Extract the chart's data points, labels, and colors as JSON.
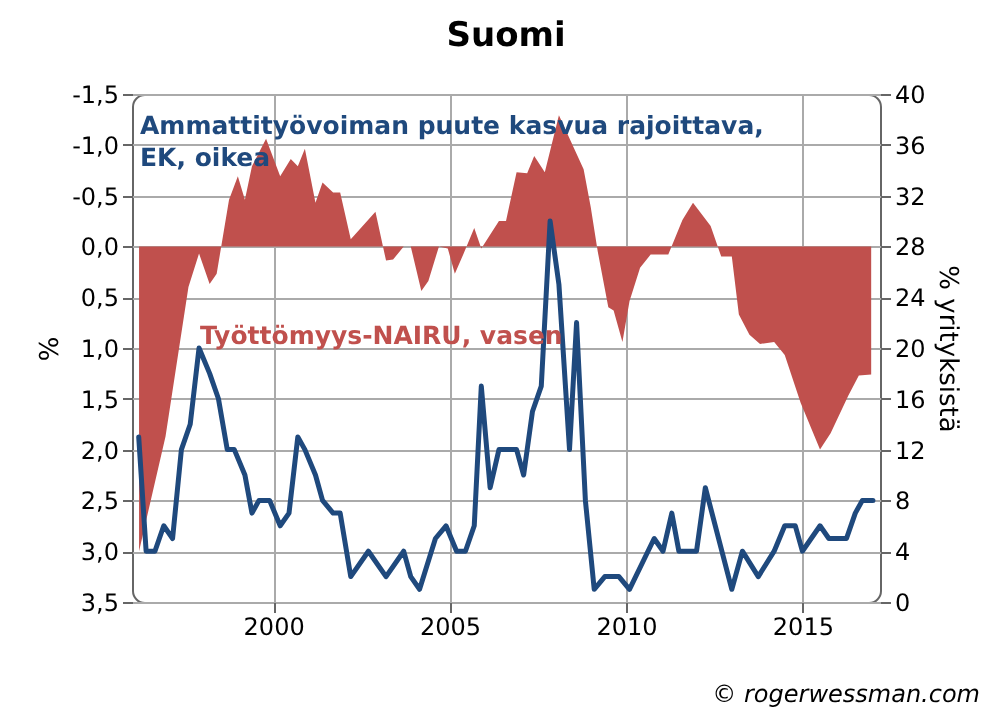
{
  "chart_data": {
    "type": "area",
    "title": "Suomi",
    "ylabel": "%",
    "y2label": "% yrityksistä",
    "annotations": [
      "© rogerwessman.com"
    ],
    "xlim": [
      1996,
      2017.2
    ],
    "xticks": [
      2000,
      2005,
      2010,
      2015
    ],
    "ylim": [
      3.5,
      -1.5
    ],
    "yticks": [
      {
        "value": -1.5,
        "label": "-1,5"
      },
      {
        "value": -1,
        "label": "-1,0"
      },
      {
        "value": -0.5,
        "label": "-0,5"
      },
      {
        "value": 0,
        "label": "0,0"
      },
      {
        "value": 0.5,
        "label": "0,5"
      },
      {
        "value": 1,
        "label": "1,0"
      },
      {
        "value": 1.5,
        "label": "1,5"
      },
      {
        "value": 2,
        "label": "2,0"
      },
      {
        "value": 2.5,
        "label": "2,5"
      },
      {
        "value": 3,
        "label": "3,0"
      },
      {
        "value": 3.5,
        "label": "3,5"
      }
    ],
    "y2lim": [
      0,
      40
    ],
    "y2ticks": [
      0,
      4,
      8,
      12,
      16,
      20,
      24,
      28,
      32,
      36,
      40
    ],
    "grid": true,
    "series": [
      {
        "name": "Työttömyys-NAIRU, vasen",
        "color": "#c0504d",
        "x": [
          1996.2,
          1996.95,
          1997.6,
          1997.9,
          1998.2,
          1998.4,
          1998.75,
          1999.0,
          1999.2,
          1999.4,
          1999.8,
          2000.2,
          2000.5,
          2000.7,
          2000.9,
          2001.2,
          2001.4,
          2001.7,
          2001.9,
          2002.2,
          2002.9,
          2003.2,
          2003.4,
          2003.7,
          2003.9,
          2004.2,
          2004.4,
          2004.7,
          2004.95,
          2005.15,
          2005.4,
          2005.7,
          2005.9,
          2006.4,
          2006.6,
          2006.9,
          2007.2,
          2007.4,
          2007.7,
          2008.1,
          2008.8,
          2009.0,
          2009.2,
          2009.5,
          2009.65,
          2009.9,
          2010.1,
          2010.4,
          2010.7,
          2011.2,
          2011.6,
          2011.9,
          2012.4,
          2012.7,
          2013.0,
          2013.2,
          2013.5,
          2013.8,
          2014.2,
          2014.5,
          2014.95,
          2015.5,
          2015.8,
          2016.3,
          2016.6,
          2016.95
        ],
        "values": [
          3.0,
          1.87,
          0.4,
          0.07,
          0.37,
          0.27,
          -0.46,
          -0.69,
          -0.46,
          -0.79,
          -1.06,
          -0.69,
          -0.86,
          -0.79,
          -0.96,
          -0.43,
          -0.63,
          -0.53,
          -0.53,
          -0.07,
          -0.34,
          0.14,
          0.13,
          0.0,
          0.0,
          0.44,
          0.34,
          0.0,
          0.02,
          0.27,
          0.07,
          -0.18,
          0.02,
          -0.25,
          -0.25,
          -0.73,
          -0.72,
          -0.89,
          -0.73,
          -1.29,
          -0.76,
          -0.39,
          0.05,
          0.6,
          0.63,
          0.94,
          0.54,
          0.21,
          0.08,
          0.08,
          -0.26,
          -0.43,
          -0.2,
          0.1,
          0.1,
          0.67,
          0.87,
          0.96,
          0.94,
          1.07,
          1.54,
          2.0,
          1.84,
          1.47,
          1.27,
          1.26
        ]
      },
      {
        "name": "Ammattityövoiman puute kasvua rajoittava, EK, oikea",
        "type": "line",
        "axis": "y2",
        "color": "#1f497d",
        "x": [
          1996.19,
          1996.4,
          1996.65,
          1996.9,
          1997.15,
          1997.4,
          1997.65,
          1997.9,
          1998.2,
          1998.45,
          1998.7,
          1998.9,
          1999.2,
          1999.4,
          1999.6,
          1999.9,
          2000.2,
          2000.45,
          2000.7,
          2000.9,
          2001.2,
          2001.4,
          2001.7,
          2001.9,
          2002.2,
          2002.7,
          2003.2,
          2003.7,
          2003.9,
          2004.15,
          2004.6,
          2004.9,
          2005.2,
          2005.45,
          2005.7,
          2005.9,
          2006.15,
          2006.4,
          2006.9,
          2007.1,
          2007.35,
          2007.6,
          2007.85,
          2008.1,
          2008.4,
          2008.6,
          2008.85,
          2009.1,
          2009.4,
          2009.8,
          2010.1,
          2010.8,
          2011.05,
          2011.3,
          2011.5,
          2012.0,
          2012.25,
          2013.0,
          2013.3,
          2013.75,
          2014.2,
          2014.5,
          2014.8,
          2015.0,
          2015.5,
          2015.75,
          2016.25,
          2016.5,
          2016.7,
          2017.0
        ],
        "values": [
          13,
          4,
          4,
          6,
          5,
          12,
          14,
          20,
          18,
          16,
          12,
          12,
          10,
          7,
          8,
          8,
          6,
          7,
          13,
          12,
          10,
          8,
          7,
          7,
          2,
          4,
          2,
          4,
          2,
          1,
          5,
          6,
          4,
          4,
          6,
          17,
          9,
          12,
          12,
          10,
          15,
          17,
          30,
          25,
          12,
          22,
          8,
          1,
          2,
          2,
          1,
          5,
          4,
          7,
          4,
          4,
          9,
          1,
          4,
          2,
          4,
          6,
          6,
          4,
          6,
          5,
          5,
          7,
          8,
          8
        ]
      }
    ]
  }
}
